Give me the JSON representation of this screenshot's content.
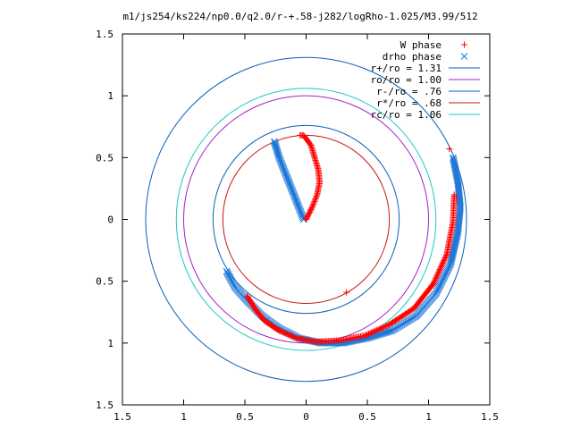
{
  "chart_data": {
    "type": "scatter",
    "title": "m1/js254/ks224/np0.0/q2.0/r-+.58-j282/logRho-1.025/M3.99/512",
    "xlabel": "",
    "ylabel": "",
    "xlim": [
      -1.5,
      1.5
    ],
    "ylim": [
      -1.5,
      1.5
    ],
    "xticks": [
      "1.5",
      "1",
      "0.5",
      "0",
      "0.5",
      "1",
      "1.5"
    ],
    "yticks": [
      "1.5",
      "1",
      "0.5",
      "0",
      "0.5",
      "1",
      "1.5"
    ],
    "xtick_values": [
      -1.5,
      -1,
      -0.5,
      0,
      0.5,
      1,
      1.5
    ],
    "ytick_values": [
      1.5,
      1,
      0.5,
      0,
      -0.5,
      -1,
      -1.5
    ],
    "grid": false,
    "legend_position": "top-right",
    "circles": [
      {
        "name": "r+/ro = 1.31",
        "radius": 1.31,
        "color": "#0a60b8"
      },
      {
        "name": "ro/ro = 1.00",
        "radius": 1.0,
        "color": "#a020c8"
      },
      {
        "name": "r-/ro = .76",
        "radius": 0.76,
        "color": "#0a60b8"
      },
      {
        "name": "r*/ro = .68",
        "radius": 0.68,
        "color": "#c81414"
      },
      {
        "name": "rc/ro = 1.06",
        "radius": 1.06,
        "color": "#18c8c8"
      }
    ],
    "series": [
      {
        "name": "W phase",
        "marker": "plus",
        "color": "#ff0000",
        "points": [
          [
            0.0,
            0.0
          ],
          [
            0.05,
            0.1
          ],
          [
            0.09,
            0.2
          ],
          [
            0.11,
            0.3
          ],
          [
            0.1,
            0.4
          ],
          [
            0.07,
            0.5
          ],
          [
            0.04,
            0.6
          ],
          [
            -0.02,
            0.68
          ],
          [
            -0.05,
            0.68
          ],
          [
            0.33,
            -0.59
          ],
          [
            -0.48,
            -0.62
          ],
          [
            -0.42,
            -0.72
          ],
          [
            -0.34,
            -0.82
          ],
          [
            -0.22,
            -0.9
          ],
          [
            -0.08,
            -0.96
          ],
          [
            0.08,
            -0.99
          ],
          [
            0.26,
            -0.98
          ],
          [
            0.48,
            -0.94
          ],
          [
            0.68,
            -0.85
          ],
          [
            0.88,
            -0.72
          ],
          [
            1.04,
            -0.52
          ],
          [
            1.15,
            -0.28
          ],
          [
            1.2,
            -0.02
          ],
          [
            1.21,
            0.2
          ],
          [
            1.17,
            0.57
          ]
        ]
      },
      {
        "name": "drho phase",
        "marker": "x",
        "color": "#1e78d8",
        "points": [
          [
            -0.02,
            0.0
          ],
          [
            -0.06,
            0.1
          ],
          [
            -0.1,
            0.2
          ],
          [
            -0.14,
            0.3
          ],
          [
            -0.18,
            0.4
          ],
          [
            -0.22,
            0.5
          ],
          [
            -0.25,
            0.6
          ],
          [
            -0.26,
            0.63
          ],
          [
            -0.65,
            -0.42
          ],
          [
            -0.58,
            -0.55
          ],
          [
            -0.48,
            -0.66
          ],
          [
            -0.36,
            -0.78
          ],
          [
            -0.22,
            -0.88
          ],
          [
            -0.06,
            -0.96
          ],
          [
            0.12,
            -1.0
          ],
          [
            0.3,
            -1.0
          ],
          [
            0.5,
            -0.96
          ],
          [
            0.7,
            -0.9
          ],
          [
            0.9,
            -0.78
          ],
          [
            1.06,
            -0.6
          ],
          [
            1.18,
            -0.36
          ],
          [
            1.24,
            -0.1
          ],
          [
            1.26,
            0.1
          ],
          [
            1.24,
            0.3
          ],
          [
            1.2,
            0.5
          ]
        ]
      }
    ]
  }
}
